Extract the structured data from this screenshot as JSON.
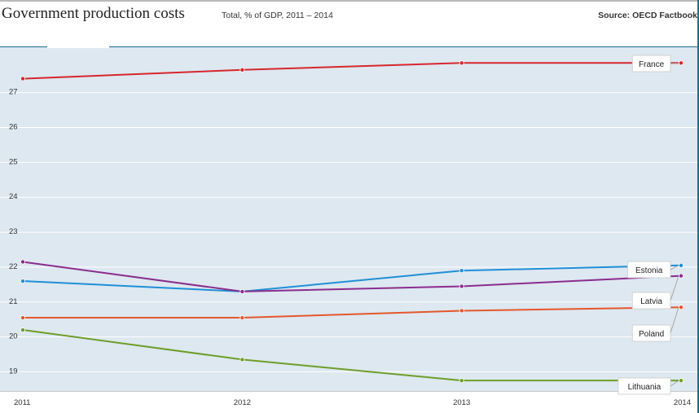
{
  "header": {
    "title": "Government production costs",
    "subtitle": "Total, % of GDP, 2011 – 2014",
    "source": "Source: OECD Factbook"
  },
  "colors": {
    "plot_bg": "#dde8f0",
    "grid": "#ffffff",
    "frame": "#1a6d8e"
  },
  "chart_data": {
    "type": "line",
    "x": [
      2011,
      2012,
      2013,
      2014
    ],
    "xlim": [
      2011,
      2014
    ],
    "ylim": [
      18.45,
      28.3
    ],
    "yticks": [
      19,
      20,
      21,
      22,
      23,
      24,
      25,
      26,
      27
    ],
    "grid": true,
    "legend": "direct labels at line ends",
    "series": [
      {
        "name": "France",
        "color": "#d8262e",
        "values": [
          27.4,
          27.65,
          27.85,
          27.85
        ]
      },
      {
        "name": "Estonia",
        "color": "#1f8fd8",
        "values": [
          21.6,
          21.3,
          21.9,
          22.05
        ]
      },
      {
        "name": "Latvia",
        "color": "#8b2c8e",
        "values": [
          22.15,
          21.3,
          21.45,
          21.75
        ]
      },
      {
        "name": "Poland",
        "color": "#e5572b",
        "values": [
          20.55,
          20.55,
          20.75,
          20.85
        ]
      },
      {
        "name": "Lithuania",
        "color": "#6d9e28",
        "values": [
          20.2,
          19.35,
          18.75,
          18.75
        ]
      }
    ]
  }
}
